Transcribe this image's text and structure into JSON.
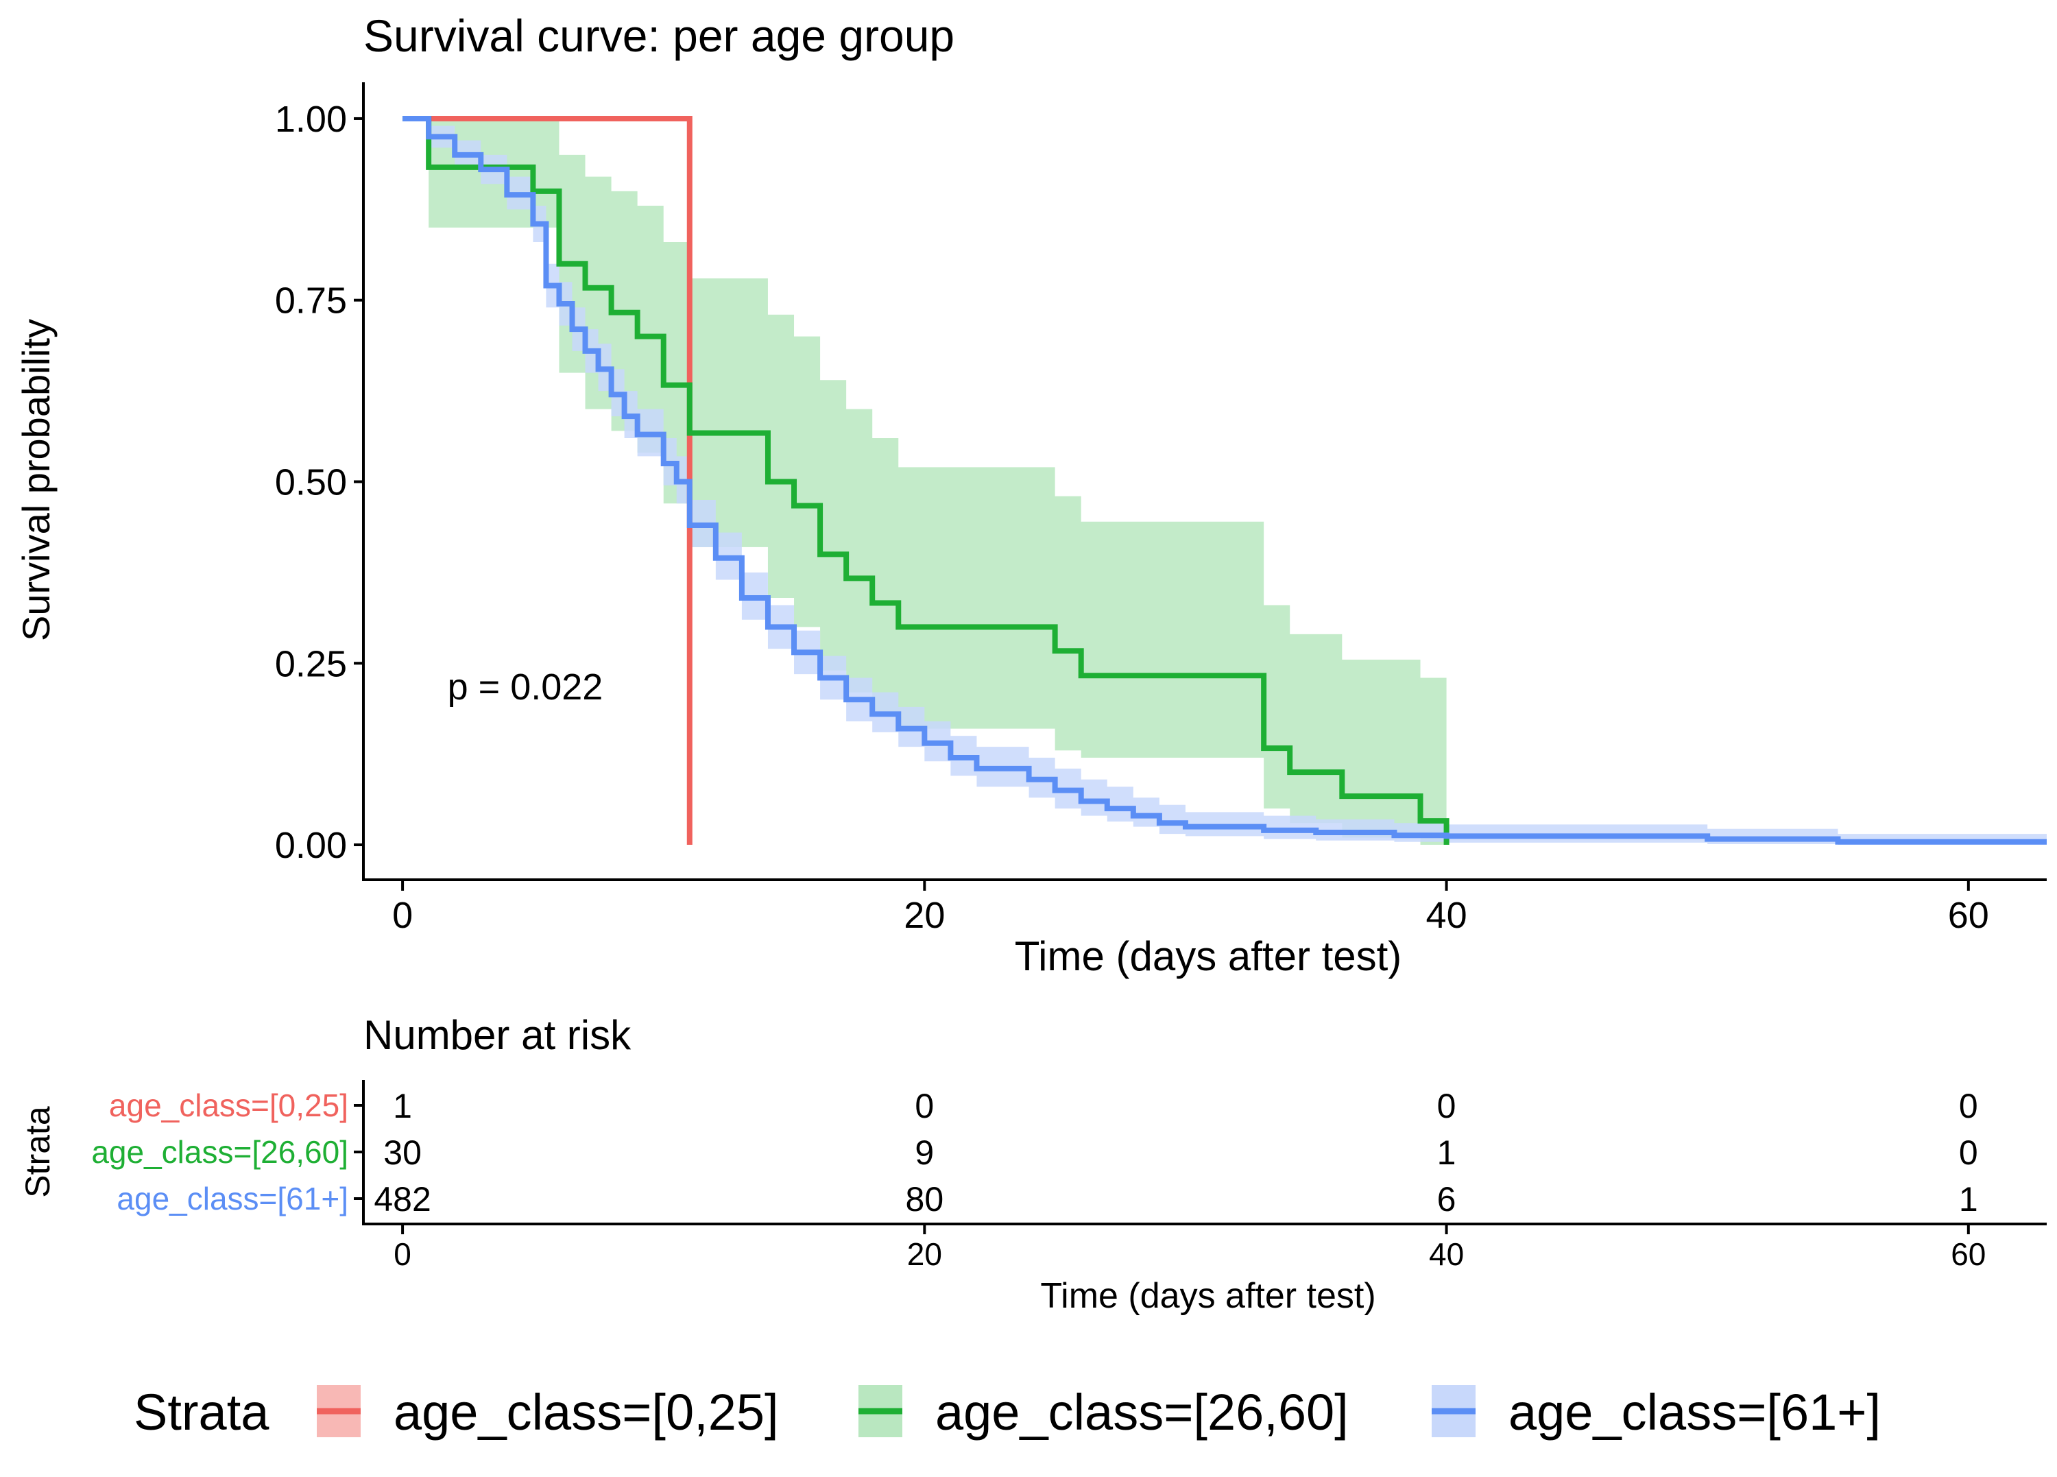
{
  "chart_data": [
    {
      "type": "line",
      "title": "Survival curve: per age group",
      "xlabel": "Time (days after test)",
      "ylabel": "Survival probability",
      "xlim": [
        -1.5,
        63
      ],
      "ylim": [
        -0.05,
        1.05
      ],
      "xticks": [
        0,
        20,
        40,
        60
      ],
      "xtick_labels": [
        "0",
        "20",
        "40",
        "60"
      ],
      "yticks": [
        0,
        0.25,
        0.5,
        0.75,
        1
      ],
      "ytick_labels": [
        "0.00",
        "0.25",
        "0.50",
        "0.75",
        "1.00"
      ],
      "grid": false,
      "annotation": "p = 0.022",
      "annotation_at": [
        4.7,
        0.2
      ],
      "series": [
        {
          "name": "age_class=[0,25]",
          "color": "#f0625d",
          "fill": "#f8b8b5",
          "steps": [
            [
              0,
              1
            ],
            [
              11,
              1
            ],
            [
              11,
              0
            ]
          ],
          "band": []
        },
        {
          "name": "age_class=[26,60]",
          "color": "#1eaf34",
          "fill": "#b9e7c0",
          "steps": [
            [
              0,
              1
            ],
            [
              1,
              1
            ],
            [
              1,
              0.933
            ],
            [
              5,
              0.933
            ],
            [
              5,
              0.9
            ],
            [
              6,
              0.9
            ],
            [
              6,
              0.8
            ],
            [
              7,
              0.8
            ],
            [
              7,
              0.767
            ],
            [
              8,
              0.767
            ],
            [
              8,
              0.733
            ],
            [
              9,
              0.733
            ],
            [
              9,
              0.7
            ],
            [
              10,
              0.7
            ],
            [
              10,
              0.633
            ],
            [
              11,
              0.633
            ],
            [
              11,
              0.567
            ],
            [
              14,
              0.567
            ],
            [
              14,
              0.5
            ],
            [
              15,
              0.5
            ],
            [
              15,
              0.467
            ],
            [
              16,
              0.467
            ],
            [
              16,
              0.4
            ],
            [
              17,
              0.4
            ],
            [
              17,
              0.367
            ],
            [
              18,
              0.367
            ],
            [
              18,
              0.333
            ],
            [
              19,
              0.333
            ],
            [
              19,
              0.3
            ],
            [
              25,
              0.3
            ],
            [
              25,
              0.267
            ],
            [
              26,
              0.267
            ],
            [
              26,
              0.233
            ],
            [
              33,
              0.233
            ],
            [
              33,
              0.133
            ],
            [
              34,
              0.133
            ],
            [
              34,
              0.1
            ],
            [
              36,
              0.1
            ],
            [
              36,
              0.067
            ],
            [
              39,
              0.067
            ],
            [
              39,
              0.033
            ],
            [
              40,
              0.033
            ],
            [
              40,
              0
            ]
          ],
          "band": [
            [
              0,
              1,
              1
            ],
            [
              1,
              1,
              0.85
            ],
            [
              6,
              0.95,
              0.65
            ],
            [
              7,
              0.92,
              0.6
            ],
            [
              8,
              0.9,
              0.57
            ],
            [
              9,
              0.88,
              0.54
            ],
            [
              10,
              0.83,
              0.47
            ],
            [
              11,
              0.78,
              0.41
            ],
            [
              14,
              0.73,
              0.34
            ],
            [
              15,
              0.7,
              0.3
            ],
            [
              16,
              0.64,
              0.24
            ],
            [
              17,
              0.6,
              0.21
            ],
            [
              18,
              0.56,
              0.18
            ],
            [
              19,
              0.52,
              0.16
            ],
            [
              25,
              0.48,
              0.13
            ],
            [
              26,
              0.445,
              0.12
            ],
            [
              33,
              0.33,
              0.05
            ],
            [
              34,
              0.29,
              0.03
            ],
            [
              36,
              0.255,
              0.01
            ],
            [
              39,
              0.23,
              0.0
            ],
            [
              40,
              0.23,
              0.0
            ]
          ]
        },
        {
          "name": "age_class=[61+]",
          "color": "#5b8ef5",
          "fill": "#c8d8fb",
          "steps": [
            [
              0,
              1
            ],
            [
              1,
              1
            ],
            [
              1,
              0.975
            ],
            [
              2,
              0.975
            ],
            [
              2,
              0.95
            ],
            [
              3,
              0.95
            ],
            [
              3,
              0.93
            ],
            [
              4,
              0.93
            ],
            [
              4,
              0.895
            ],
            [
              5,
              0.895
            ],
            [
              5,
              0.855
            ],
            [
              5.5,
              0.855
            ],
            [
              5.5,
              0.77
            ],
            [
              6,
              0.77
            ],
            [
              6,
              0.745
            ],
            [
              6.5,
              0.745
            ],
            [
              6.5,
              0.71
            ],
            [
              7,
              0.71
            ],
            [
              7,
              0.68
            ],
            [
              7.5,
              0.68
            ],
            [
              7.5,
              0.655
            ],
            [
              8,
              0.655
            ],
            [
              8,
              0.62
            ],
            [
              8.5,
              0.62
            ],
            [
              8.5,
              0.59
            ],
            [
              9,
              0.59
            ],
            [
              9,
              0.565
            ],
            [
              10,
              0.565
            ],
            [
              10,
              0.525
            ],
            [
              10.5,
              0.525
            ],
            [
              10.5,
              0.5
            ],
            [
              11,
              0.5
            ],
            [
              11,
              0.44
            ],
            [
              12,
              0.44
            ],
            [
              12,
              0.395
            ],
            [
              13,
              0.395
            ],
            [
              13,
              0.34
            ],
            [
              14,
              0.34
            ],
            [
              14,
              0.3
            ],
            [
              15,
              0.3
            ],
            [
              15,
              0.265
            ],
            [
              16,
              0.265
            ],
            [
              16,
              0.23
            ],
            [
              17,
              0.23
            ],
            [
              17,
              0.2
            ],
            [
              18,
              0.2
            ],
            [
              18,
              0.18
            ],
            [
              19,
              0.18
            ],
            [
              19,
              0.16
            ],
            [
              20,
              0.16
            ],
            [
              20,
              0.14
            ],
            [
              21,
              0.14
            ],
            [
              21,
              0.12
            ],
            [
              22,
              0.12
            ],
            [
              22,
              0.105
            ],
            [
              24,
              0.105
            ],
            [
              24,
              0.09
            ],
            [
              25,
              0.09
            ],
            [
              25,
              0.075
            ],
            [
              26,
              0.075
            ],
            [
              26,
              0.06
            ],
            [
              27,
              0.06
            ],
            [
              27,
              0.05
            ],
            [
              28,
              0.05
            ],
            [
              28,
              0.04
            ],
            [
              29,
              0.04
            ],
            [
              29,
              0.03
            ],
            [
              30,
              0.03
            ],
            [
              30,
              0.025
            ],
            [
              33,
              0.025
            ],
            [
              33,
              0.02
            ],
            [
              35,
              0.02
            ],
            [
              35,
              0.017
            ],
            [
              38,
              0.017
            ],
            [
              38,
              0.013
            ],
            [
              40,
              0.013
            ],
            [
              40,
              0.012
            ],
            [
              50,
              0.012
            ],
            [
              50,
              0.008
            ],
            [
              55,
              0.008
            ],
            [
              55,
              0.004
            ],
            [
              63,
              0.004
            ]
          ],
          "band": [
            [
              0,
              1,
              1
            ],
            [
              1,
              0.99,
              0.96
            ],
            [
              2,
              0.97,
              0.935
            ],
            [
              3,
              0.95,
              0.91
            ],
            [
              4,
              0.92,
              0.875
            ],
            [
              5,
              0.88,
              0.83
            ],
            [
              5.5,
              0.8,
              0.74
            ],
            [
              6,
              0.775,
              0.715
            ],
            [
              6.5,
              0.74,
              0.68
            ],
            [
              7,
              0.71,
              0.65
            ],
            [
              7.5,
              0.69,
              0.625
            ],
            [
              8,
              0.655,
              0.59
            ],
            [
              8.5,
              0.625,
              0.56
            ],
            [
              9,
              0.6,
              0.535
            ],
            [
              10,
              0.56,
              0.495
            ],
            [
              10.5,
              0.535,
              0.47
            ],
            [
              11,
              0.475,
              0.41
            ],
            [
              12,
              0.43,
              0.365
            ],
            [
              13,
              0.375,
              0.31
            ],
            [
              14,
              0.33,
              0.27
            ],
            [
              15,
              0.295,
              0.235
            ],
            [
              16,
              0.26,
              0.2
            ],
            [
              17,
              0.23,
              0.17
            ],
            [
              18,
              0.21,
              0.155
            ],
            [
              19,
              0.19,
              0.135
            ],
            [
              20,
              0.17,
              0.115
            ],
            [
              21,
              0.15,
              0.095
            ],
            [
              22,
              0.135,
              0.08
            ],
            [
              24,
              0.12,
              0.065
            ],
            [
              25,
              0.105,
              0.05
            ],
            [
              26,
              0.09,
              0.04
            ],
            [
              27,
              0.08,
              0.032
            ],
            [
              28,
              0.065,
              0.025
            ],
            [
              29,
              0.055,
              0.015
            ],
            [
              30,
              0.045,
              0.012
            ],
            [
              33,
              0.04,
              0.008
            ],
            [
              35,
              0.035,
              0.006
            ],
            [
              38,
              0.03,
              0.004
            ],
            [
              40,
              0.028,
              0.003
            ],
            [
              50,
              0.022,
              0.001
            ],
            [
              55,
              0.015,
              0.0
            ],
            [
              63,
              0.015,
              0.0
            ]
          ]
        }
      ]
    },
    {
      "type": "table",
      "title": "Number at risk",
      "xlabel": "Time (days after test)",
      "ylabel": "Strata",
      "xticks": [
        0,
        20,
        40,
        60
      ],
      "xtick_labels": [
        "0",
        "20",
        "40",
        "60"
      ],
      "rows": [
        {
          "name": "age_class=[0,25]",
          "color": "#f0625d",
          "values": [
            "1",
            "0",
            "0",
            "0"
          ]
        },
        {
          "name": "age_class=[26,60]",
          "color": "#1eaf34",
          "values": [
            "30",
            "9",
            "1",
            "0"
          ]
        },
        {
          "name": "age_class=[61+]",
          "color": "#5b8ef5",
          "values": [
            "482",
            "80",
            "6",
            "1"
          ]
        }
      ]
    }
  ],
  "legend": {
    "title": "Strata",
    "position": "bottom",
    "items": [
      {
        "label": "age_class=[0,25]",
        "color": "#f0625d",
        "fill": "#f8b8b5"
      },
      {
        "label": "age_class=[26,60]",
        "color": "#1eaf34",
        "fill": "#b9e7c0"
      },
      {
        "label": "age_class=[61+]",
        "color": "#5b8ef5",
        "fill": "#c8d8fb"
      }
    ]
  }
}
